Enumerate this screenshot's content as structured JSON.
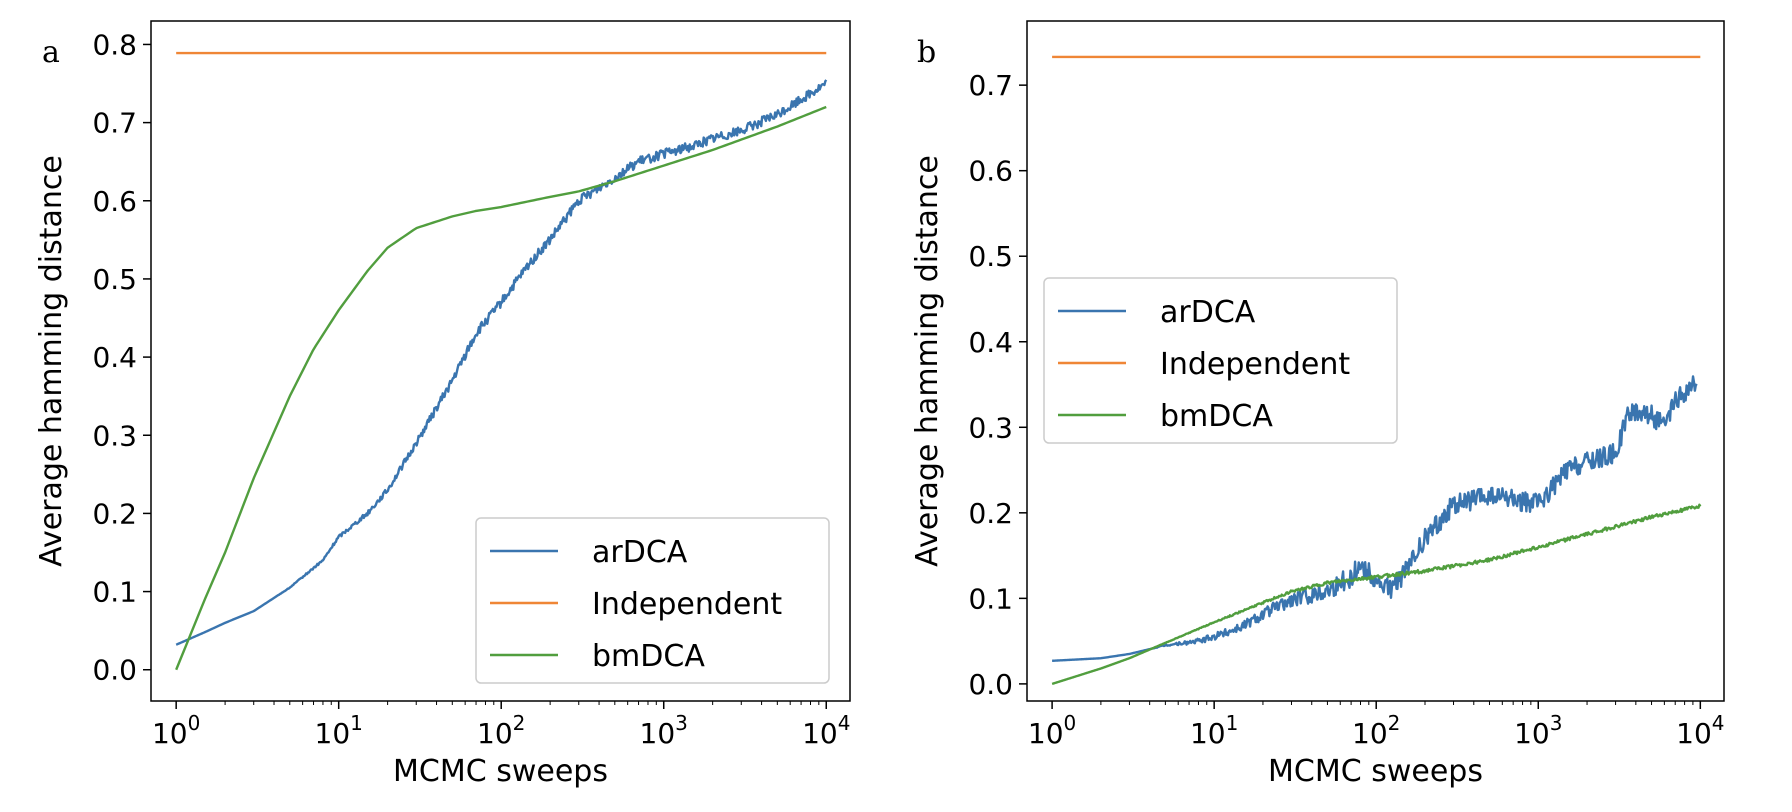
{
  "colors": {
    "arDCA": "#3a75af",
    "Independent": "#ef8636",
    "bmDCA": "#519e3e",
    "axes": "#000000",
    "legend_border": "#cccccc"
  },
  "chart_data": [
    {
      "type": "line",
      "panel": "a",
      "title": "",
      "xlabel": "MCMC sweeps",
      "ylabel": "Average hamming distance",
      "xscale": "log",
      "xlim": [
        0.7,
        14000
      ],
      "ylim": [
        -0.04,
        0.83
      ],
      "xticks": [
        1,
        10,
        100,
        1000,
        10000
      ],
      "xtick_labels": [
        [
          "10",
          "0"
        ],
        [
          "10",
          "1"
        ],
        [
          "10",
          "2"
        ],
        [
          "10",
          "3"
        ],
        [
          "10",
          "4"
        ]
      ],
      "yticks": [
        0.0,
        0.1,
        0.2,
        0.3,
        0.4,
        0.5,
        0.6,
        0.7,
        0.8
      ],
      "ytick_labels": [
        "0.0",
        "0.1",
        "0.2",
        "0.3",
        "0.4",
        "0.5",
        "0.6",
        "0.7",
        "0.8"
      ],
      "legend": {
        "position": "lower-right",
        "entries": [
          "arDCA",
          "Independent",
          "bmDCA"
        ]
      },
      "series": [
        {
          "name": "arDCA",
          "x": [
            1,
            1.5,
            2,
            3,
            5,
            8,
            10,
            15,
            20,
            30,
            50,
            70,
            100,
            150,
            200,
            300,
            500,
            700,
            1000,
            1500,
            2000,
            3000,
            5000,
            7000,
            10000
          ],
          "y": [
            0.032,
            0.048,
            0.06,
            0.075,
            0.105,
            0.14,
            0.17,
            0.2,
            0.23,
            0.29,
            0.37,
            0.43,
            0.47,
            0.52,
            0.55,
            0.6,
            0.63,
            0.65,
            0.66,
            0.67,
            0.68,
            0.69,
            0.71,
            0.73,
            0.75
          ],
          "noise": 0.006
        },
        {
          "name": "Independent",
          "x": [
            1,
            10000
          ],
          "y": [
            0.789,
            0.789
          ],
          "noise": 0
        },
        {
          "name": "bmDCA",
          "x": [
            1,
            1.5,
            2,
            3,
            5,
            7,
            10,
            15,
            20,
            30,
            50,
            70,
            100,
            200,
            300,
            500,
            1000,
            2000,
            5000,
            10000
          ],
          "y": [
            0.0,
            0.09,
            0.15,
            0.245,
            0.35,
            0.41,
            0.46,
            0.51,
            0.54,
            0.565,
            0.58,
            0.587,
            0.592,
            0.605,
            0.612,
            0.625,
            0.645,
            0.665,
            0.695,
            0.72
          ],
          "noise": 0
        }
      ]
    },
    {
      "type": "line",
      "panel": "b",
      "title": "",
      "xlabel": "MCMC sweeps",
      "ylabel": "Average hamming distance",
      "xscale": "log",
      "xlim": [
        0.7,
        14000
      ],
      "ylim": [
        -0.02,
        0.775
      ],
      "xticks": [
        1,
        10,
        100,
        1000,
        10000
      ],
      "xtick_labels": [
        [
          "10",
          "0"
        ],
        [
          "10",
          "1"
        ],
        [
          "10",
          "2"
        ],
        [
          "10",
          "3"
        ],
        [
          "10",
          "4"
        ]
      ],
      "yticks": [
        0.0,
        0.1,
        0.2,
        0.3,
        0.4,
        0.5,
        0.6,
        0.7
      ],
      "ytick_labels": [
        "0.0",
        "0.1",
        "0.2",
        "0.3",
        "0.4",
        "0.5",
        "0.6",
        "0.7"
      ],
      "legend": {
        "position": "center-left",
        "entries": [
          "arDCA",
          "Independent",
          "bmDCA"
        ]
      },
      "series": [
        {
          "name": "arDCA",
          "x": [
            1,
            2,
            3,
            5,
            8,
            10,
            15,
            20,
            30,
            50,
            70,
            80,
            100,
            120,
            150,
            200,
            300,
            500,
            700,
            1000,
            1500,
            2000,
            3000,
            3500,
            4000,
            5000,
            6000,
            7000,
            8000,
            9000,
            9500
          ],
          "y": [
            0.027,
            0.03,
            0.035,
            0.045,
            0.05,
            0.055,
            0.068,
            0.082,
            0.098,
            0.11,
            0.125,
            0.14,
            0.12,
            0.11,
            0.13,
            0.17,
            0.21,
            0.22,
            0.215,
            0.21,
            0.25,
            0.26,
            0.27,
            0.31,
            0.32,
            0.315,
            0.3,
            0.33,
            0.34,
            0.35,
            0.34
          ],
          "noise": 0.012
        },
        {
          "name": "Independent",
          "x": [
            1,
            10000
          ],
          "y": [
            0.733,
            0.733
          ],
          "noise": 0
        },
        {
          "name": "bmDCA",
          "x": [
            1,
            2,
            3,
            5,
            10,
            20,
            30,
            50,
            100,
            200,
            500,
            1000,
            2000,
            5000,
            10000
          ],
          "y": [
            0.0,
            0.018,
            0.03,
            0.048,
            0.072,
            0.095,
            0.108,
            0.118,
            0.125,
            0.132,
            0.145,
            0.16,
            0.175,
            0.195,
            0.208
          ],
          "noise": 0.002
        }
      ]
    }
  ]
}
